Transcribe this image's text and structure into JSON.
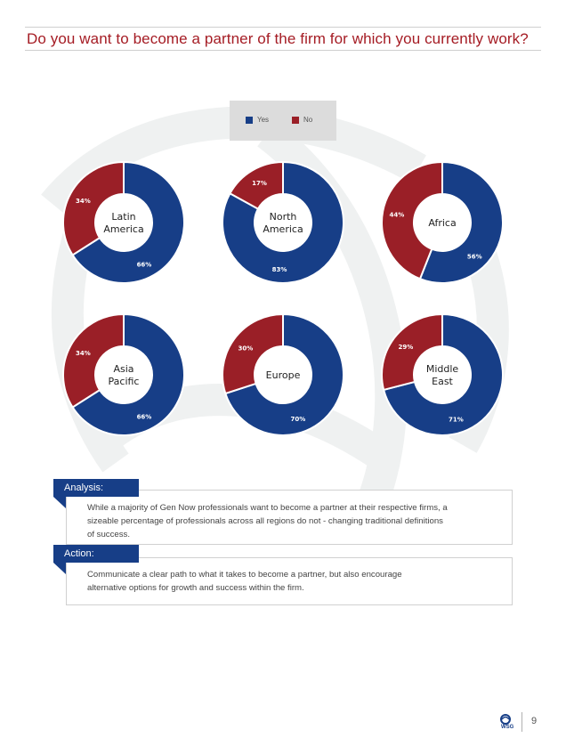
{
  "page": {
    "title": "Do you want to become a partner of the firm for which you currently work?",
    "page_number": "9",
    "logo_text": "WSG"
  },
  "colors": {
    "yes": "#173e87",
    "no": "#9a1f27",
    "title": "#a51c24"
  },
  "chart_data": {
    "type": "pie",
    "variant": "donut",
    "legend": {
      "position": "top-center",
      "entries": [
        "Yes",
        "No"
      ]
    },
    "series_names": [
      "Yes",
      "No"
    ],
    "charts": [
      {
        "label_lines": [
          "Latin",
          "America"
        ],
        "yes": 66,
        "no": 34,
        "yes_label": "66%",
        "no_label": "34%"
      },
      {
        "label_lines": [
          "North",
          "America"
        ],
        "yes": 83,
        "no": 17,
        "yes_label": "83%",
        "no_label": "17%"
      },
      {
        "label_lines": [
          "Africa"
        ],
        "yes": 56,
        "no": 44,
        "yes_label": "56%",
        "no_label": "44%"
      },
      {
        "label_lines": [
          "Asia",
          "Pacific"
        ],
        "yes": 66,
        "no": 34,
        "yes_label": "66%",
        "no_label": "34%"
      },
      {
        "label_lines": [
          "Europe"
        ],
        "yes": 70,
        "no": 30,
        "yes_label": "70%",
        "no_label": "30%"
      },
      {
        "label_lines": [
          "Middle",
          "East"
        ],
        "yes": 71,
        "no": 29,
        "yes_label": "71%",
        "no_label": "29%"
      }
    ]
  },
  "analysis": {
    "heading": "Analysis:",
    "lines": [
      "While a majority of Gen Now professionals want to become a partner at their respective firms, a",
      "sizeable percentage of professionals across all regions do not - changing traditional definitions",
      "of success."
    ]
  },
  "action": {
    "heading": "Action:",
    "lines": [
      "Communicate a clear path to what it takes to become a partner, but also encourage",
      "alternative options for growth and success within the firm."
    ]
  }
}
